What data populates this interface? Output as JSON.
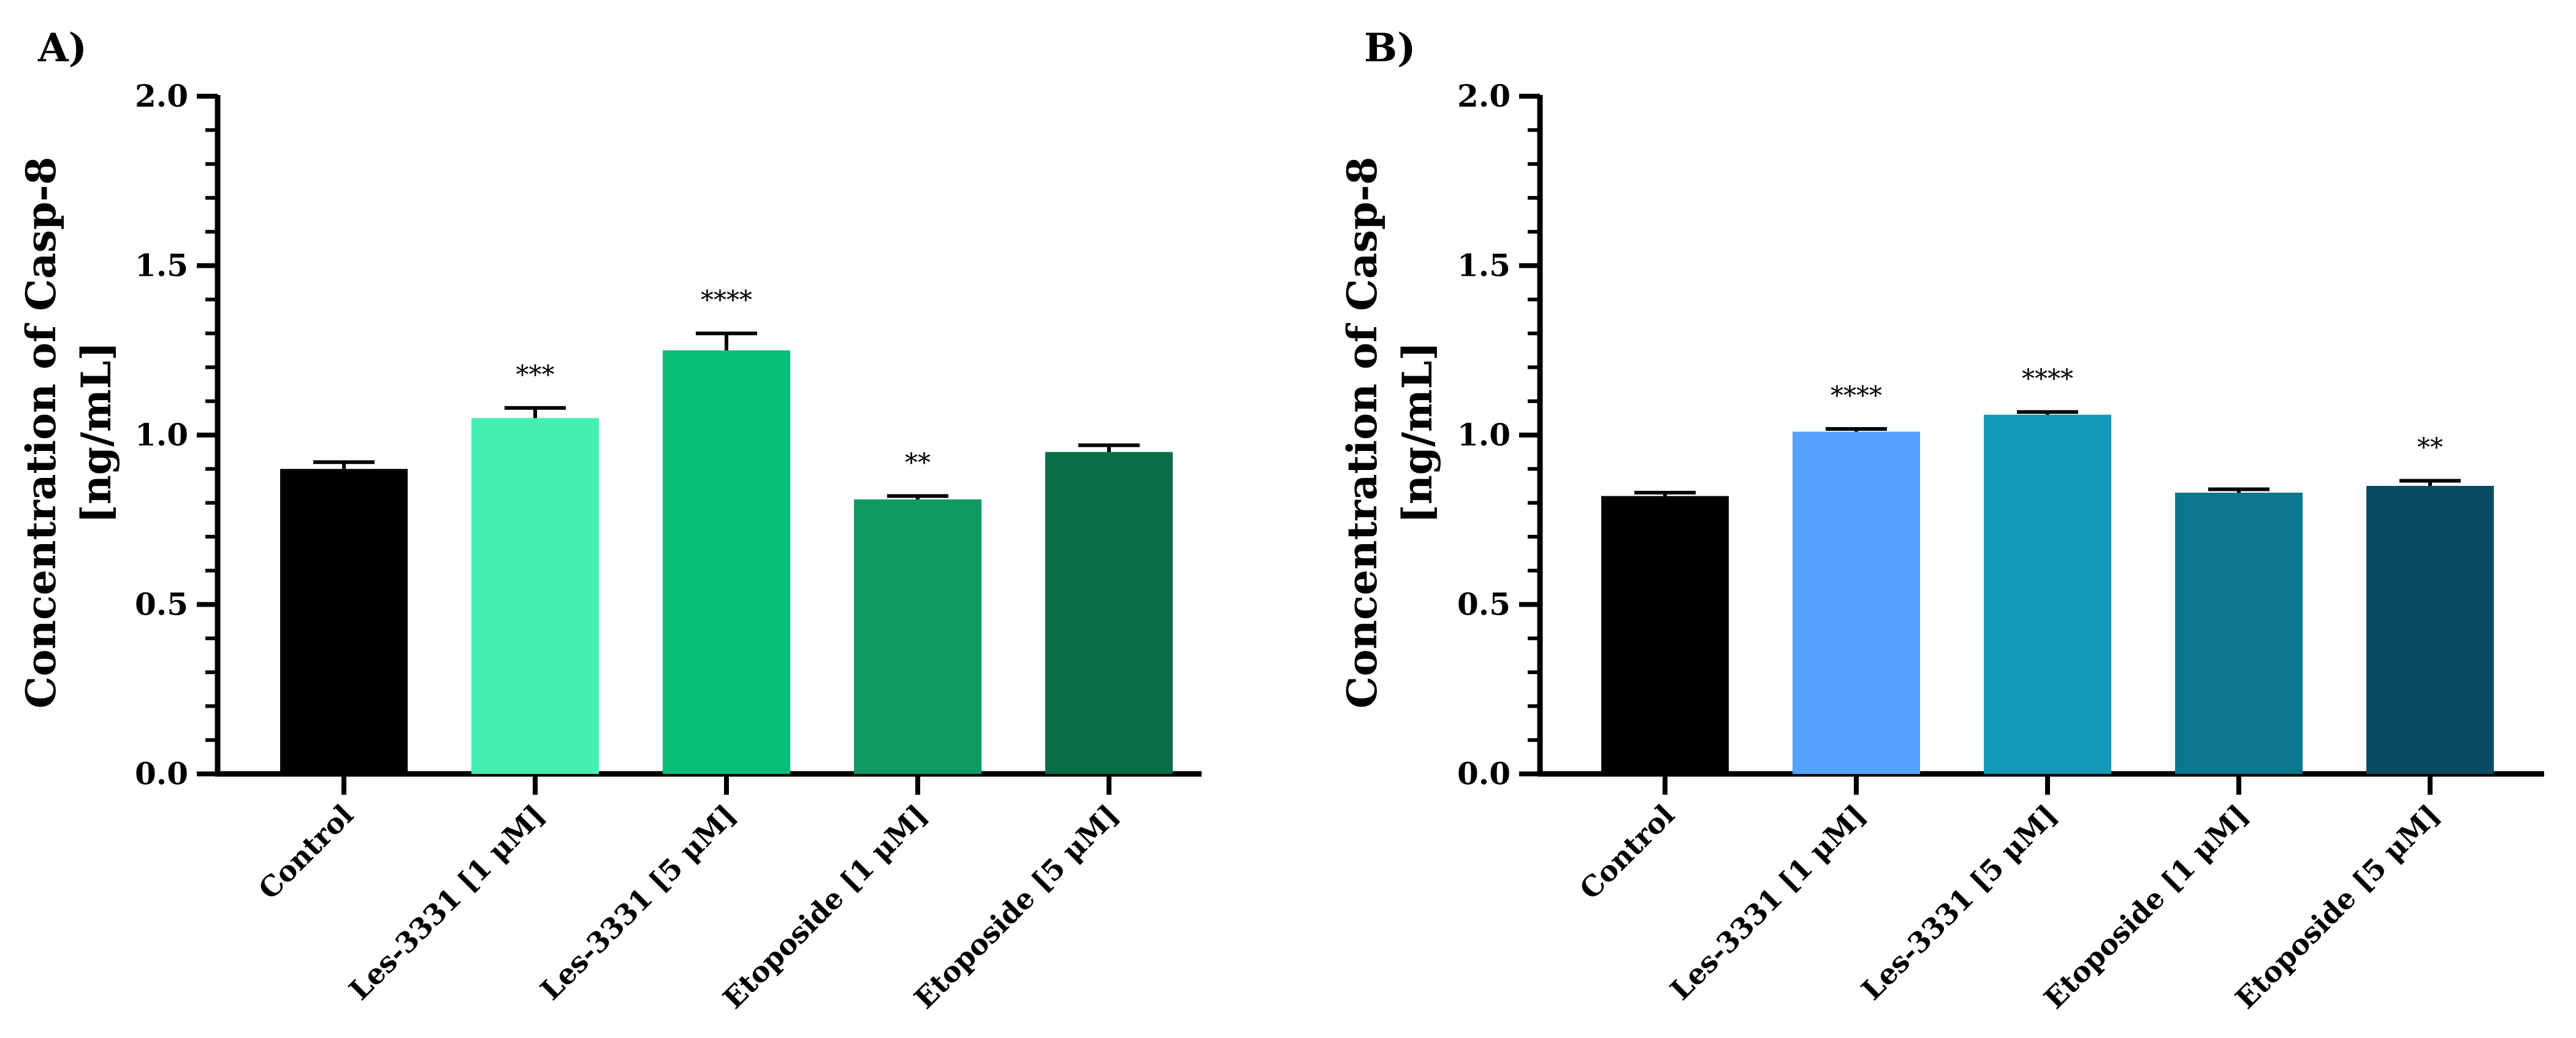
{
  "chart_data": [
    {
      "panel": "A)",
      "type": "bar",
      "ylabel_line1": "Concentration of Casp-8",
      "ylabel_line2": "[ng/mL]",
      "ylim": [
        0,
        2.0
      ],
      "yticks": [
        "0.0",
        "0.5",
        "1.0",
        "1.5",
        "2.0"
      ],
      "categories": [
        "Control",
        "Les-3331 [1 μM]",
        "Les-3331 [5 μM]",
        "Etoposide [1 μM]",
        "Etoposide [5 μM]"
      ],
      "values": [
        0.9,
        1.05,
        1.25,
        0.81,
        0.95
      ],
      "errors": [
        0.02,
        0.03,
        0.05,
        0.01,
        0.02
      ],
      "significance": [
        "",
        "***",
        "****",
        "**",
        ""
      ],
      "colors": [
        "#000000",
        "#44f0b0",
        "#08bf79",
        "#0e9b63",
        "#076e46"
      ]
    },
    {
      "panel": "B)",
      "type": "bar",
      "ylabel_line1": "Concentration of Casp-8",
      "ylabel_line2": "[ng/mL]",
      "ylim": [
        0,
        2.0
      ],
      "yticks": [
        "0.0",
        "0.5",
        "1.0",
        "1.5",
        "2.0"
      ],
      "categories": [
        "Control",
        "Les-3331 [1 μM]",
        "Les-3331 [5 μM]",
        "Etoposide [1 μM]",
        "Etoposide [5 μM]"
      ],
      "values": [
        0.82,
        1.01,
        1.06,
        0.83,
        0.85
      ],
      "errors": [
        0.01,
        0.008,
        0.008,
        0.01,
        0.015
      ],
      "significance": [
        "",
        "****",
        "****",
        "",
        "**"
      ],
      "colors": [
        "#000000",
        "#55a3ff",
        "#1399b6",
        "#0b7690",
        "#074c63"
      ]
    }
  ]
}
